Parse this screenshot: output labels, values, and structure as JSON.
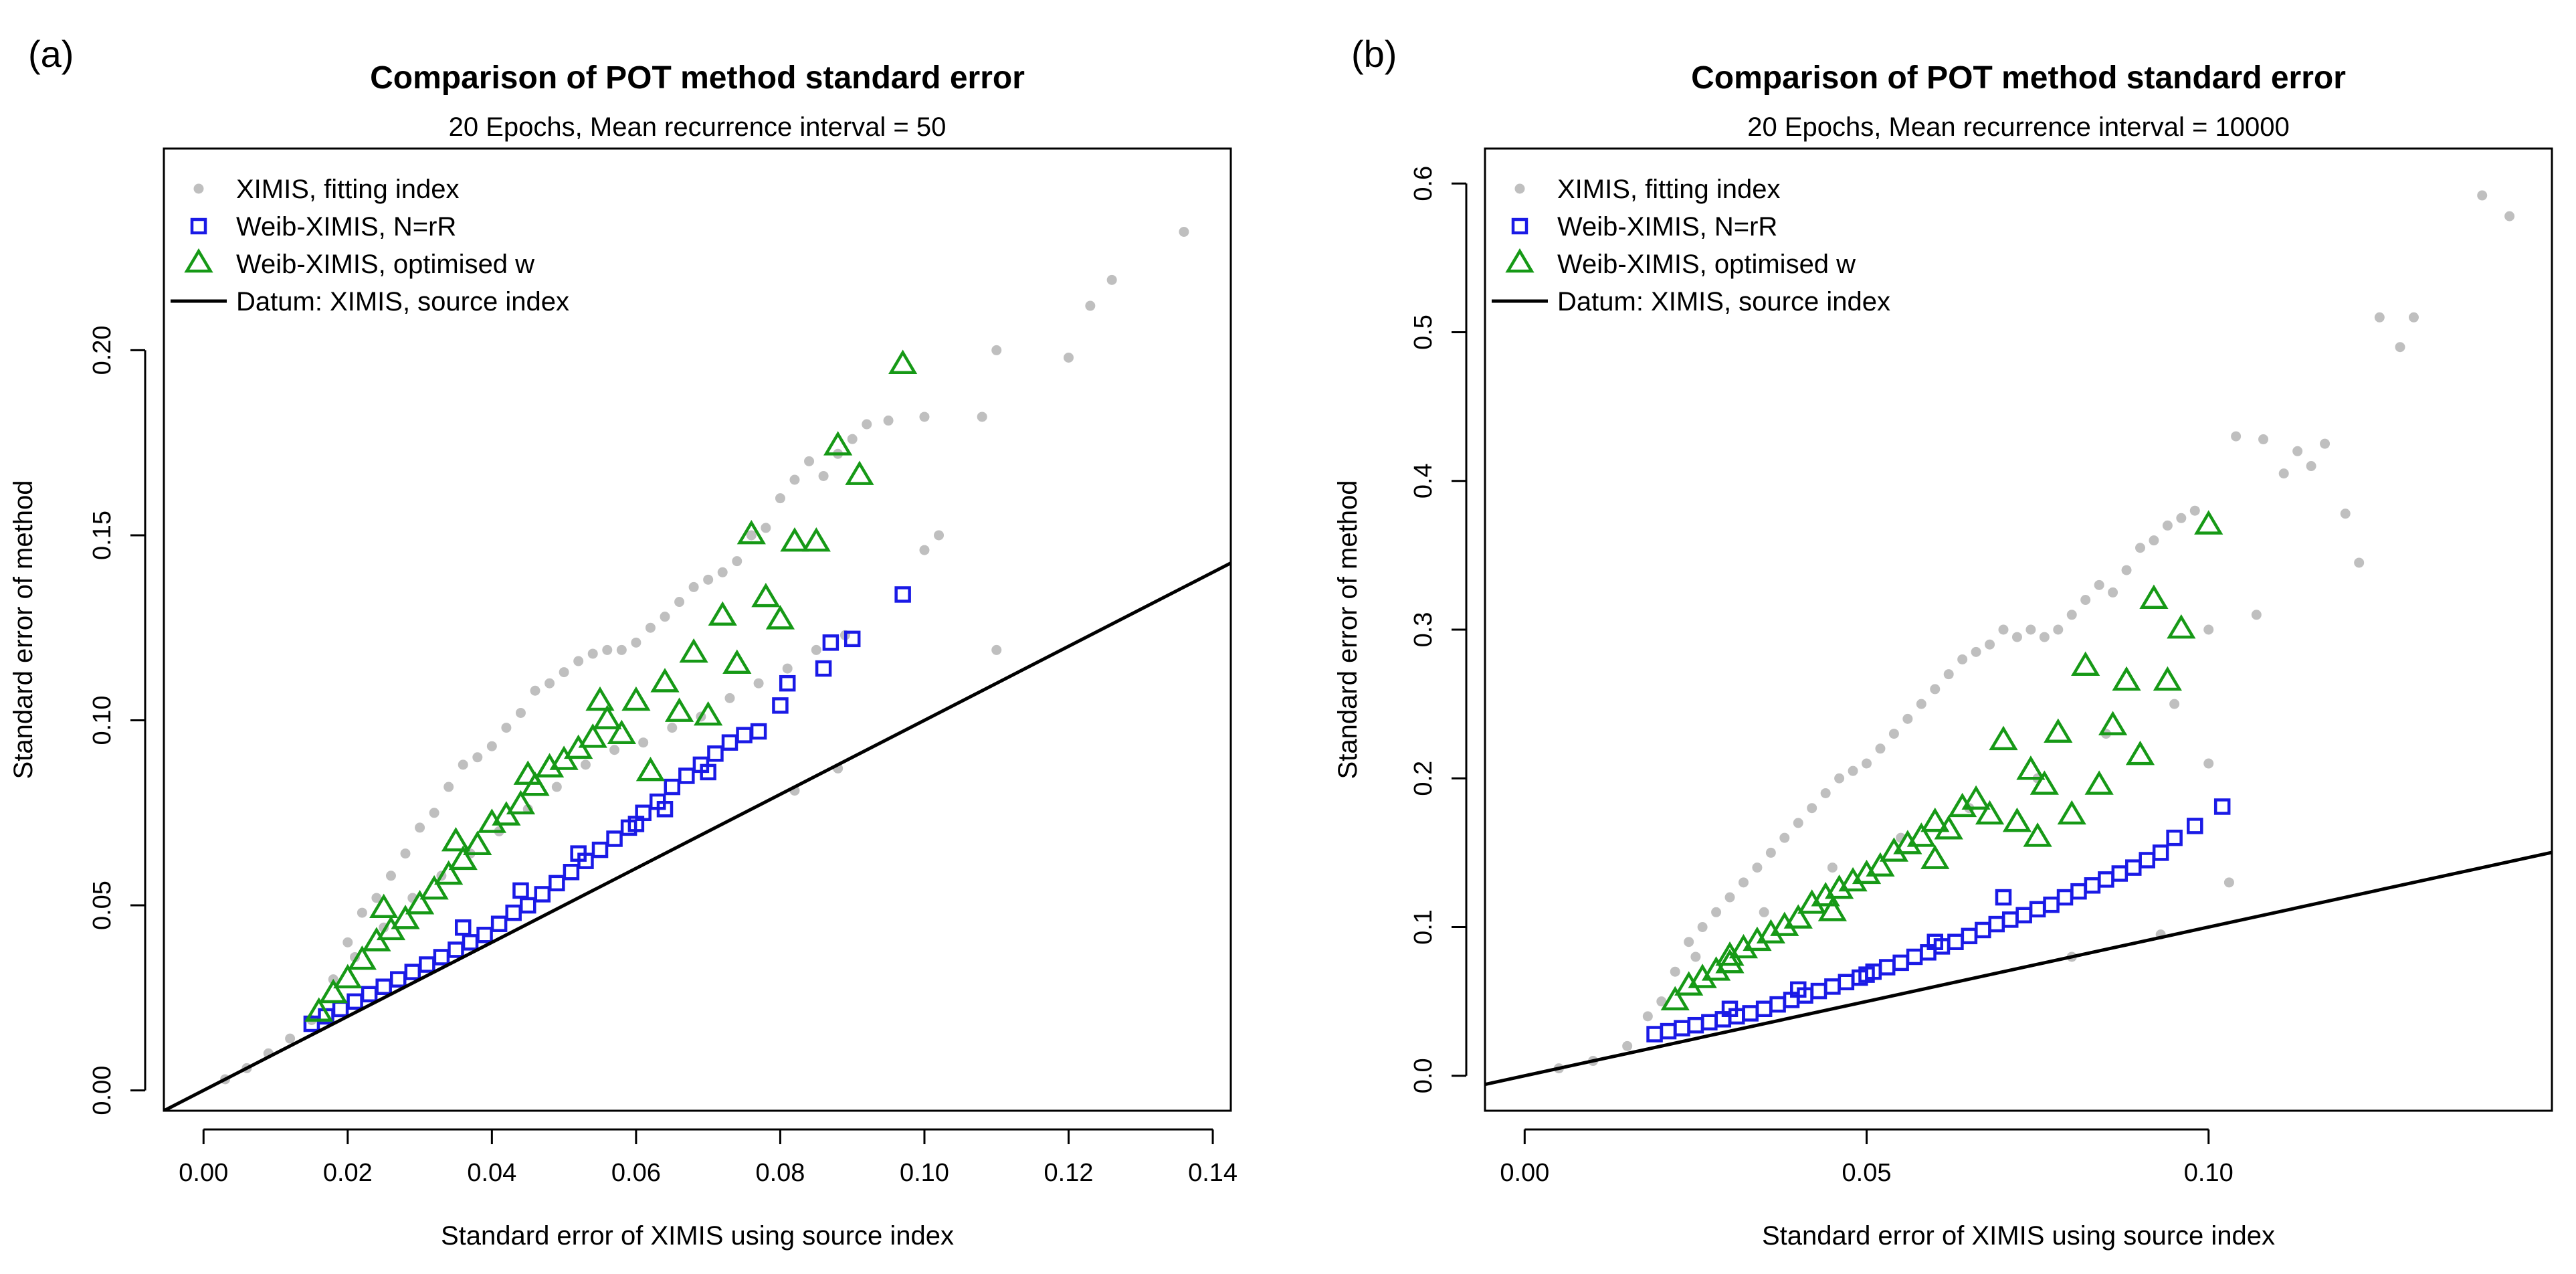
{
  "chart_data": [
    {
      "type": "scatter",
      "panel_label": "(a)",
      "title": "Comparison of POT method standard error",
      "subtitle": "20  Epochs, Mean recurrence interval =  50",
      "xlabel": "Standard error of XIMIS using source index",
      "ylabel": "Standard error of method",
      "xlim": [
        -0.0055,
        0.1425
      ],
      "ylim": [
        -0.0055,
        0.2545
      ],
      "xticks": [
        0.0,
        0.02,
        0.04,
        0.06,
        0.08,
        0.1,
        0.12,
        0.14
      ],
      "xtick_labels": [
        "0.00",
        "0.02",
        "0.04",
        "0.06",
        "0.08",
        "0.10",
        "0.12",
        "0.14"
      ],
      "yticks": [
        0.0,
        0.05,
        0.1,
        0.15,
        0.2
      ],
      "ytick_labels": [
        "0.00",
        "0.05",
        "0.10",
        "0.15",
        "0.20"
      ],
      "legend_position": "top-left",
      "legend": [
        {
          "label": "XIMIS, fitting index",
          "marker": "circle",
          "color": "#bfbfbf"
        },
        {
          "label": "Weib-XIMIS, N=rR",
          "marker": "square",
          "color": "#1a1ae6"
        },
        {
          "label": "Weib-XIMIS, optimised w",
          "marker": "triangle",
          "color": "#169916"
        },
        {
          "label": "Datum: XIMIS, source index",
          "marker": "line",
          "color": "#000000"
        }
      ],
      "datum_line": {
        "slope": 1.0,
        "intercept": 0.0
      },
      "series": [
        {
          "name": "XIMIS, fitting index",
          "marker": "circle",
          "color": "#bfbfbf",
          "x": [
            0.003,
            0.006,
            0.009,
            0.012,
            0.015,
            0.018,
            0.02,
            0.022,
            0.024,
            0.026,
            0.028,
            0.03,
            0.032,
            0.034,
            0.036,
            0.038,
            0.04,
            0.042,
            0.044,
            0.046,
            0.048,
            0.05,
            0.052,
            0.054,
            0.056,
            0.058,
            0.06,
            0.062,
            0.064,
            0.066,
            0.068,
            0.07,
            0.072,
            0.074,
            0.076,
            0.078,
            0.08,
            0.082,
            0.084,
            0.086,
            0.088,
            0.09,
            0.092,
            0.095,
            0.1,
            0.102,
            0.108,
            0.11,
            0.11,
            0.12,
            0.123,
            0.126,
            0.136,
            0.021,
            0.025,
            0.029,
            0.033,
            0.037,
            0.041,
            0.045,
            0.049,
            0.053,
            0.057,
            0.061,
            0.065,
            0.069,
            0.073,
            0.077,
            0.081,
            0.085,
            0.089,
            0.1,
            0.082,
            0.088
          ],
          "y": [
            0.003,
            0.006,
            0.01,
            0.014,
            0.019,
            0.03,
            0.04,
            0.048,
            0.052,
            0.058,
            0.064,
            0.071,
            0.075,
            0.082,
            0.088,
            0.09,
            0.093,
            0.098,
            0.102,
            0.108,
            0.11,
            0.113,
            0.116,
            0.118,
            0.119,
            0.119,
            0.121,
            0.125,
            0.128,
            0.132,
            0.136,
            0.138,
            0.14,
            0.143,
            0.15,
            0.152,
            0.16,
            0.165,
            0.17,
            0.166,
            0.172,
            0.176,
            0.18,
            0.181,
            0.182,
            0.15,
            0.182,
            0.2,
            0.119,
            0.198,
            0.212,
            0.219,
            0.232,
            0.036,
            0.044,
            0.052,
            0.058,
            0.064,
            0.07,
            0.076,
            0.082,
            0.088,
            0.092,
            0.094,
            0.098,
            0.101,
            0.106,
            0.11,
            0.114,
            0.119,
            0.123,
            0.146,
            0.081,
            0.087
          ]
        },
        {
          "name": "Weib-XIMIS, N=rR",
          "marker": "square",
          "color": "#1a1ae6",
          "x": [
            0.015,
            0.017,
            0.019,
            0.021,
            0.023,
            0.025,
            0.027,
            0.029,
            0.031,
            0.033,
            0.035,
            0.037,
            0.039,
            0.041,
            0.043,
            0.045,
            0.047,
            0.049,
            0.051,
            0.053,
            0.055,
            0.057,
            0.059,
            0.061,
            0.063,
            0.065,
            0.067,
            0.069,
            0.071,
            0.073,
            0.075,
            0.077,
            0.08,
            0.081,
            0.086,
            0.087,
            0.09,
            0.097,
            0.036,
            0.044,
            0.052,
            0.06,
            0.064,
            0.07
          ],
          "y": [
            0.018,
            0.02,
            0.022,
            0.024,
            0.026,
            0.028,
            0.03,
            0.032,
            0.034,
            0.036,
            0.038,
            0.04,
            0.042,
            0.045,
            0.048,
            0.05,
            0.053,
            0.056,
            0.059,
            0.062,
            0.065,
            0.068,
            0.071,
            0.075,
            0.078,
            0.082,
            0.085,
            0.088,
            0.091,
            0.094,
            0.096,
            0.097,
            0.104,
            0.11,
            0.114,
            0.121,
            0.122,
            0.134,
            0.044,
            0.054,
            0.064,
            0.072,
            0.076,
            0.086
          ]
        },
        {
          "name": "Weib-XIMIS, optimised w",
          "marker": "triangle",
          "color": "#169916",
          "x": [
            0.016,
            0.018,
            0.02,
            0.022,
            0.024,
            0.026,
            0.028,
            0.03,
            0.032,
            0.034,
            0.036,
            0.038,
            0.04,
            0.042,
            0.044,
            0.046,
            0.048,
            0.05,
            0.052,
            0.054,
            0.056,
            0.058,
            0.06,
            0.062,
            0.064,
            0.066,
            0.068,
            0.07,
            0.072,
            0.074,
            0.076,
            0.078,
            0.08,
            0.082,
            0.085,
            0.088,
            0.091,
            0.097,
            0.025,
            0.035,
            0.045,
            0.055
          ],
          "y": [
            0.021,
            0.026,
            0.03,
            0.035,
            0.04,
            0.043,
            0.046,
            0.05,
            0.054,
            0.058,
            0.062,
            0.066,
            0.072,
            0.074,
            0.077,
            0.082,
            0.087,
            0.089,
            0.092,
            0.095,
            0.1,
            0.096,
            0.105,
            0.086,
            0.11,
            0.102,
            0.118,
            0.101,
            0.128,
            0.115,
            0.15,
            0.133,
            0.127,
            0.148,
            0.148,
            0.174,
            0.166,
            0.196,
            0.049,
            0.067,
            0.085,
            0.105
          ]
        }
      ]
    },
    {
      "type": "scatter",
      "panel_label": "(b)",
      "title": "Comparison of POT method standard error",
      "subtitle": "20  Epochs, Mean recurrence interval =  10000",
      "xlabel": "Standard error of XIMIS using source index",
      "ylabel": "Standard error of method",
      "xlim": [
        -0.0058,
        0.1502
      ],
      "ylim": [
        -0.0235,
        0.6235
      ],
      "xticks": [
        0.0,
        0.05,
        0.1
      ],
      "xtick_labels": [
        "0.00",
        "0.05",
        "0.10"
      ],
      "yticks": [
        0.0,
        0.1,
        0.2,
        0.3,
        0.4,
        0.5,
        0.6
      ],
      "ytick_labels": [
        "0.0",
        "0.1",
        "0.2",
        "0.3",
        "0.4",
        "0.5",
        "0.6"
      ],
      "legend_position": "top-left",
      "legend": [
        {
          "label": "XIMIS, fitting index",
          "marker": "circle",
          "color": "#bfbfbf"
        },
        {
          "label": "Weib-XIMIS, N=rR",
          "marker": "square",
          "color": "#1a1ae6"
        },
        {
          "label": "Weib-XIMIS, optimised w",
          "marker": "triangle",
          "color": "#169916"
        },
        {
          "label": "Datum: XIMIS, source index",
          "marker": "line",
          "color": "#000000"
        }
      ],
      "datum_line": {
        "slope": 1.0,
        "intercept": 0.0
      },
      "series": [
        {
          "name": "XIMIS, fitting index",
          "marker": "circle",
          "color": "#bfbfbf",
          "x": [
            0.005,
            0.01,
            0.015,
            0.018,
            0.02,
            0.022,
            0.024,
            0.026,
            0.028,
            0.03,
            0.032,
            0.034,
            0.036,
            0.038,
            0.04,
            0.042,
            0.044,
            0.046,
            0.048,
            0.05,
            0.052,
            0.054,
            0.056,
            0.058,
            0.06,
            0.062,
            0.064,
            0.066,
            0.068,
            0.07,
            0.072,
            0.074,
            0.076,
            0.078,
            0.08,
            0.082,
            0.084,
            0.086,
            0.088,
            0.09,
            0.092,
            0.094,
            0.096,
            0.098,
            0.1,
            0.1,
            0.103,
            0.104,
            0.107,
            0.108,
            0.111,
            0.113,
            0.115,
            0.117,
            0.12,
            0.122,
            0.125,
            0.128,
            0.13,
            0.14,
            0.144,
            0.025,
            0.035,
            0.045,
            0.055,
            0.065,
            0.075,
            0.085,
            0.095,
            0.08,
            0.093
          ],
          "y": [
            0.005,
            0.01,
            0.02,
            0.04,
            0.05,
            0.07,
            0.09,
            0.1,
            0.11,
            0.12,
            0.13,
            0.14,
            0.15,
            0.16,
            0.17,
            0.18,
            0.19,
            0.2,
            0.205,
            0.21,
            0.22,
            0.23,
            0.24,
            0.25,
            0.26,
            0.27,
            0.28,
            0.285,
            0.29,
            0.3,
            0.295,
            0.3,
            0.295,
            0.3,
            0.31,
            0.32,
            0.33,
            0.325,
            0.34,
            0.355,
            0.36,
            0.37,
            0.375,
            0.38,
            0.3,
            0.21,
            0.13,
            0.43,
            0.31,
            0.428,
            0.405,
            0.42,
            0.41,
            0.425,
            0.378,
            0.345,
            0.51,
            0.49,
            0.51,
            0.592,
            0.578,
            0.08,
            0.11,
            0.14,
            0.16,
            0.18,
            0.2,
            0.23,
            0.25,
            0.08,
            0.095
          ]
        },
        {
          "name": "Weib-XIMIS, N=rR",
          "marker": "square",
          "color": "#1a1ae6",
          "x": [
            0.019,
            0.021,
            0.023,
            0.025,
            0.027,
            0.029,
            0.031,
            0.033,
            0.035,
            0.037,
            0.039,
            0.041,
            0.043,
            0.045,
            0.047,
            0.049,
            0.051,
            0.053,
            0.055,
            0.057,
            0.059,
            0.061,
            0.063,
            0.065,
            0.067,
            0.069,
            0.071,
            0.073,
            0.075,
            0.077,
            0.079,
            0.081,
            0.083,
            0.085,
            0.087,
            0.089,
            0.091,
            0.093,
            0.095,
            0.098,
            0.102,
            0.03,
            0.04,
            0.05,
            0.06,
            0.07
          ],
          "y": [
            0.028,
            0.03,
            0.032,
            0.034,
            0.036,
            0.038,
            0.04,
            0.042,
            0.045,
            0.048,
            0.051,
            0.054,
            0.057,
            0.06,
            0.063,
            0.066,
            0.07,
            0.073,
            0.076,
            0.08,
            0.083,
            0.087,
            0.09,
            0.094,
            0.098,
            0.102,
            0.105,
            0.108,
            0.112,
            0.115,
            0.12,
            0.124,
            0.128,
            0.132,
            0.136,
            0.14,
            0.145,
            0.15,
            0.16,
            0.168,
            0.181,
            0.045,
            0.058,
            0.068,
            0.09,
            0.12
          ]
        },
        {
          "name": "Weib-XIMIS, optimised w",
          "marker": "triangle",
          "color": "#169916",
          "x": [
            0.022,
            0.024,
            0.026,
            0.028,
            0.03,
            0.032,
            0.034,
            0.036,
            0.038,
            0.04,
            0.042,
            0.044,
            0.046,
            0.048,
            0.05,
            0.052,
            0.054,
            0.056,
            0.058,
            0.06,
            0.062,
            0.064,
            0.066,
            0.068,
            0.07,
            0.072,
            0.074,
            0.076,
            0.078,
            0.08,
            0.082,
            0.084,
            0.086,
            0.088,
            0.09,
            0.092,
            0.094,
            0.096,
            0.1,
            0.03,
            0.045,
            0.06,
            0.075
          ],
          "y": [
            0.05,
            0.06,
            0.065,
            0.07,
            0.08,
            0.085,
            0.09,
            0.095,
            0.1,
            0.105,
            0.115,
            0.12,
            0.125,
            0.13,
            0.135,
            0.14,
            0.15,
            0.155,
            0.16,
            0.17,
            0.165,
            0.18,
            0.185,
            0.175,
            0.225,
            0.17,
            0.205,
            0.195,
            0.23,
            0.175,
            0.275,
            0.195,
            0.235,
            0.265,
            0.215,
            0.32,
            0.265,
            0.3,
            0.37,
            0.075,
            0.11,
            0.145,
            0.16
          ]
        }
      ]
    }
  ]
}
